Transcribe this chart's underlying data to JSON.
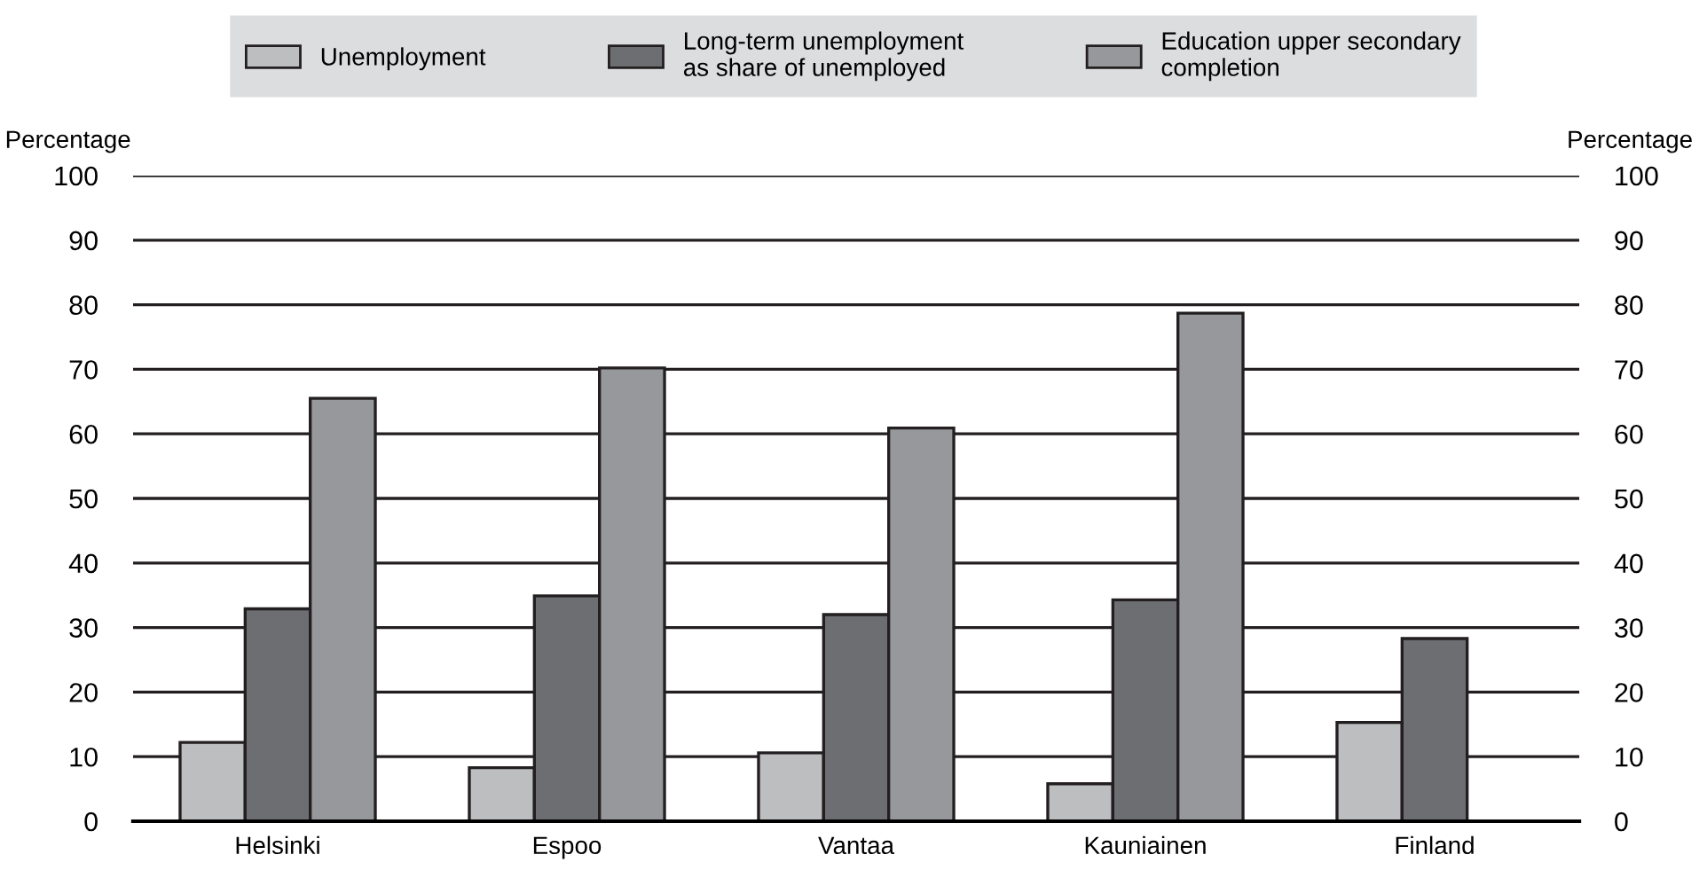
{
  "chart_data": {
    "type": "bar",
    "categories": [
      "Helsinki",
      "Espoo",
      "Vantaa",
      "Kauniainen",
      "Finland"
    ],
    "series": [
      {
        "name": "Unemployment",
        "color": "#bdbec0",
        "values": [
          12.2,
          8.3,
          10.6,
          5.8,
          15.3
        ]
      },
      {
        "name": "Long-term unemployment\nas share of unemployed",
        "color": "#6d6e71",
        "values": [
          32.9,
          34.9,
          32.0,
          34.3,
          28.3
        ]
      },
      {
        "name": "Education upper secondary\ncompletion",
        "color": "#97989b",
        "values": [
          65.5,
          70.2,
          60.9,
          78.7,
          null
        ]
      }
    ],
    "ylabel": "Percentage",
    "y2label": "Percentage",
    "ylim": [
      0,
      100
    ],
    "yticks": [
      0,
      10,
      20,
      30,
      40,
      50,
      60,
      70,
      80,
      90,
      100
    ],
    "y2lim": [
      0,
      100
    ],
    "y2ticks": [
      0,
      10,
      20,
      30,
      40,
      50,
      60,
      70,
      80,
      90,
      100
    ],
    "grid": "y",
    "legend": "top"
  }
}
